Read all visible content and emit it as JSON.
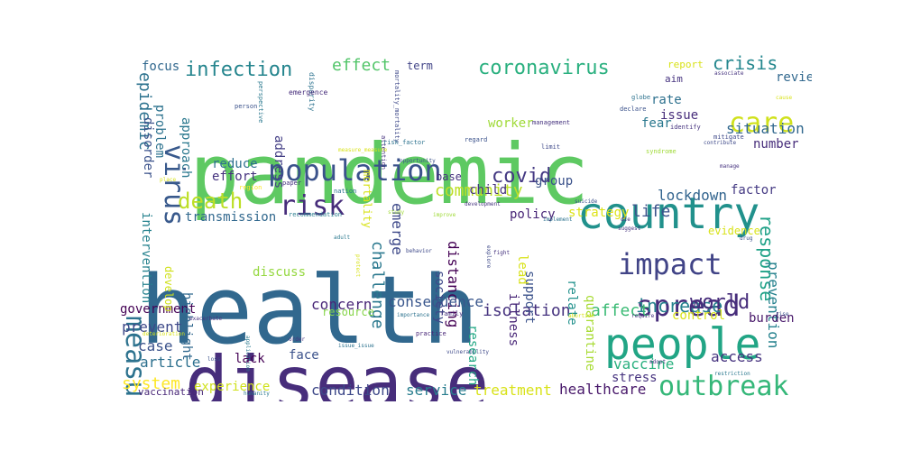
{
  "word_cloud": {
    "words": [
      {
        "text": "health",
        "color": "#31688e"
      },
      {
        "text": "pandemic",
        "color": "#5ec962"
      },
      {
        "text": "disease",
        "color": "#472d7b"
      },
      {
        "text": "country",
        "color": "#21918c"
      },
      {
        "text": "people",
        "color": "#21a585"
      },
      {
        "text": "population",
        "color": "#3b528b"
      },
      {
        "text": "impact",
        "color": "#414487"
      },
      {
        "text": "spread",
        "color": "#472d7b"
      },
      {
        "text": "outbreak",
        "color": "#35b779"
      },
      {
        "text": "measure",
        "color": "#2c728e"
      },
      {
        "text": "risk",
        "color": "#472d7b"
      },
      {
        "text": "death",
        "color": "#bddf26"
      },
      {
        "text": "virus",
        "color": "#38598c"
      },
      {
        "text": "infection",
        "color": "#25858e"
      },
      {
        "text": "coronavirus",
        "color": "#2ab07f"
      },
      {
        "text": "care",
        "color": "#d0e11c"
      },
      {
        "text": "covid",
        "color": "#443983"
      },
      {
        "text": "increase",
        "color": "#26828e"
      },
      {
        "text": "world",
        "color": "#472d7b"
      },
      {
        "text": "response",
        "color": "#1fa187"
      },
      {
        "text": "crisis",
        "color": "#24878e"
      },
      {
        "text": "effect",
        "color": "#52c569"
      },
      {
        "text": "community",
        "color": "#bddf26"
      },
      {
        "text": "challenge",
        "color": "#2a788e"
      },
      {
        "text": "distancing",
        "color": "#440154"
      },
      {
        "text": "life",
        "color": "#3b528b"
      },
      {
        "text": "epidemic",
        "color": "#2c728e"
      },
      {
        "text": "situation",
        "color": "#31688e"
      },
      {
        "text": "lockdown",
        "color": "#32648e"
      },
      {
        "text": "affect",
        "color": "#3bbb75"
      },
      {
        "text": "isolation",
        "color": "#46337f"
      },
      {
        "text": "system",
        "color": "#fde725"
      },
      {
        "text": "concern",
        "color": "#482677"
      },
      {
        "text": "consequence",
        "color": "#39568c"
      },
      {
        "text": "government",
        "color": "#440154"
      },
      {
        "text": "emerge",
        "color": "#3e4989"
      },
      {
        "text": "strategy",
        "color": "#dde318"
      },
      {
        "text": "prevention",
        "color": "#26828e"
      },
      {
        "text": "access",
        "color": "#46337f"
      },
      {
        "text": "vaccine",
        "color": "#2ab07f"
      },
      {
        "text": "treatment",
        "color": "#d8e219"
      },
      {
        "text": "service",
        "color": "#287d8e"
      },
      {
        "text": "healthcare",
        "color": "#48186a"
      },
      {
        "text": "experience",
        "color": "#d0e11c"
      },
      {
        "text": "condition",
        "color": "#3e4989"
      },
      {
        "text": "article",
        "color": "#2d708e"
      },
      {
        "text": "case",
        "color": "#3b528b"
      },
      {
        "text": "prevent",
        "color": "#3e4989"
      },
      {
        "text": "control",
        "color": "#d8e219"
      },
      {
        "text": "burden",
        "color": "#48186a"
      },
      {
        "text": "review",
        "color": "#31688e"
      },
      {
        "text": "number",
        "color": "#472d7b"
      },
      {
        "text": "factor",
        "color": "#443983"
      },
      {
        "text": "evidence",
        "color": "#d8e219"
      },
      {
        "text": "quarantine",
        "color": "#a8db34"
      },
      {
        "text": "relate",
        "color": "#21918c"
      },
      {
        "text": "research",
        "color": "#22a884"
      },
      {
        "text": "illness",
        "color": "#482677"
      },
      {
        "text": "support",
        "color": "#3b528b"
      },
      {
        "text": "lead",
        "color": "#d8e219"
      },
      {
        "text": "policy",
        "color": "#482677"
      },
      {
        "text": "society",
        "color": "#3e4989"
      },
      {
        "text": "transmission",
        "color": "#31688e"
      },
      {
        "text": "intervention",
        "color": "#26828e"
      },
      {
        "text": "disorder",
        "color": "#3b528b"
      },
      {
        "text": "reduce",
        "color": "#2d708e"
      },
      {
        "text": "effort",
        "color": "#46337f"
      },
      {
        "text": "approach",
        "color": "#2a788e"
      },
      {
        "text": "address",
        "color": "#433e85"
      },
      {
        "text": "focus",
        "color": "#31688e"
      },
      {
        "text": "problem",
        "color": "#2c728e"
      },
      {
        "text": "term",
        "color": "#414487"
      },
      {
        "text": "issue",
        "color": "#472d7b"
      },
      {
        "text": "fear",
        "color": "#2a788e"
      },
      {
        "text": "rate",
        "color": "#2d708e"
      },
      {
        "text": "worker",
        "color": "#a0da39"
      },
      {
        "text": "mortality",
        "color": "#d8e219"
      },
      {
        "text": "highlight",
        "color": "#31688e"
      },
      {
        "text": "develop",
        "color": "#d0e11c"
      },
      {
        "text": "discuss",
        "color": "#95d840"
      },
      {
        "text": "face",
        "color": "#3b528b"
      },
      {
        "text": "lack",
        "color": "#440154"
      },
      {
        "text": "vaccination",
        "color": "#482677"
      },
      {
        "text": "resource",
        "color": "#86d549"
      },
      {
        "text": "base",
        "color": "#46337f"
      },
      {
        "text": "child",
        "color": "#46337f"
      },
      {
        "text": "group",
        "color": "#3b528b"
      },
      {
        "text": "stress",
        "color": "#46337f"
      },
      {
        "text": "report",
        "color": "#d8e219"
      },
      {
        "text": "aim",
        "color": "#46337f"
      },
      {
        "text": "disparity",
        "color": "#2c728e"
      },
      {
        "text": "emergence",
        "color": "#472d7b"
      },
      {
        "text": "mortality_mortality",
        "color": "#3e4989"
      },
      {
        "text": "perspective",
        "color": "#2a788e"
      },
      {
        "text": "person",
        "color": "#3b528b"
      },
      {
        "text": "paper",
        "color": "#46337f"
      },
      {
        "text": "nation",
        "color": "#2c728e"
      },
      {
        "text": "region",
        "color": "#fde725"
      },
      {
        "text": "place",
        "color": "#d8e219"
      },
      {
        "text": "recommendation",
        "color": "#287d8e"
      },
      {
        "text": "study",
        "color": "#a0da39"
      },
      {
        "text": "improve",
        "color": "#a0da39"
      },
      {
        "text": "practice",
        "color": "#482677"
      },
      {
        "text": "vulnerability",
        "color": "#3e4989"
      },
      {
        "text": "adopt",
        "color": "#46337f"
      },
      {
        "text": "restriction",
        "color": "#2a788e"
      },
      {
        "text": "management",
        "color": "#46337f"
      },
      {
        "text": "regard",
        "color": "#3b528b"
      },
      {
        "text": "identify",
        "color": "#46337f"
      },
      {
        "text": "mitigate",
        "color": "#3e4989"
      },
      {
        "text": "associate",
        "color": "#46337f"
      },
      {
        "text": "globe",
        "color": "#2c728e"
      },
      {
        "text": "declare",
        "color": "#3b528b"
      },
      {
        "text": "contribute",
        "color": "#3e4989"
      },
      {
        "text": "cause",
        "color": "#d8e219"
      },
      {
        "text": "suggest",
        "color": "#46337f"
      },
      {
        "text": "manage",
        "color": "#46337f"
      },
      {
        "text": "drug",
        "color": "#3b528b"
      },
      {
        "text": "require",
        "color": "#46337f"
      },
      {
        "text": "rise",
        "color": "#3b528b"
      },
      {
        "text": "abortion",
        "color": "#d8e219"
      },
      {
        "text": "family",
        "color": "#46337f"
      },
      {
        "text": "importance",
        "color": "#2c728e"
      },
      {
        "text": "explore",
        "color": "#3e4989"
      },
      {
        "text": "fight",
        "color": "#46337f"
      },
      {
        "text": "implement",
        "color": "#2c728e"
      },
      {
        "text": "suicide",
        "color": "#3b528b"
      },
      {
        "text": "die",
        "color": "#46337f"
      },
      {
        "text": "protect",
        "color": "#d8e219"
      },
      {
        "text": "adult",
        "color": "#2a788e"
      },
      {
        "text": "behavior",
        "color": "#3e4989"
      },
      {
        "text": "order",
        "color": "#46337f"
      },
      {
        "text": "issue_issue",
        "color": "#2c728e"
      },
      {
        "text": "exacerbate",
        "color": "#46337f"
      },
      {
        "text": "deterioration",
        "color": "#d8e219"
      },
      {
        "text": "loss",
        "color": "#3b528b"
      },
      {
        "text": "humanity",
        "color": "#2a788e"
      },
      {
        "text": "attention",
        "color": "#46337f"
      },
      {
        "text": "risk_factor",
        "color": "#2c728e"
      },
      {
        "text": "limit",
        "color": "#3e4989"
      },
      {
        "text": "syndrome",
        "color": "#a0da39"
      },
      {
        "text": "measure_measure",
        "color": "#d8e219"
      },
      {
        "text": "opportunity",
        "color": "#3b528b"
      },
      {
        "text": "development",
        "color": "#46337f"
      },
      {
        "text": "application",
        "color": "#2a788e"
      }
    ]
  }
}
